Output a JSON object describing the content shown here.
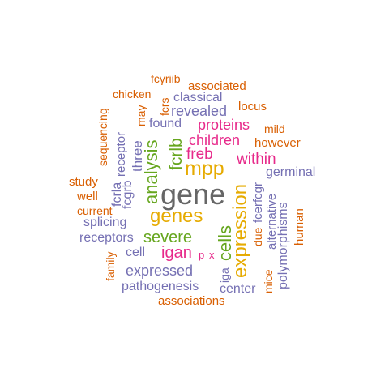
{
  "colors": {
    "orange": "#d95f02",
    "purple": "#7570b3",
    "magenta": "#e7298a",
    "green": "#66a61e",
    "gold": "#e6ab02",
    "gray": "#666666"
  },
  "words": [
    {
      "text": "gene",
      "color": "gray"
    },
    {
      "text": "genes",
      "color": "gold"
    },
    {
      "text": "mpp",
      "color": "gold"
    },
    {
      "text": "expression",
      "color": "gold"
    },
    {
      "text": "analysis",
      "color": "green"
    },
    {
      "text": "severe",
      "color": "green"
    },
    {
      "text": "fcrlb",
      "color": "green"
    },
    {
      "text": "cells",
      "color": "green"
    },
    {
      "text": "freb",
      "color": "magenta"
    },
    {
      "text": "proteins",
      "color": "magenta"
    },
    {
      "text": "children",
      "color": "magenta"
    },
    {
      "text": "within",
      "color": "magenta"
    },
    {
      "text": "igan",
      "color": "magenta"
    },
    {
      "text": "p",
      "color": "magenta"
    },
    {
      "text": "x",
      "color": "magenta"
    },
    {
      "text": "expressed",
      "color": "purple"
    },
    {
      "text": "pathogenesis",
      "color": "purple"
    },
    {
      "text": "revealed",
      "color": "purple"
    },
    {
      "text": "classical",
      "color": "purple"
    },
    {
      "text": "found",
      "color": "purple"
    },
    {
      "text": "three",
      "color": "purple"
    },
    {
      "text": "fcgrb",
      "color": "purple"
    },
    {
      "text": "fcrla",
      "color": "purple"
    },
    {
      "text": "receptor",
      "color": "purple"
    },
    {
      "text": "splicing",
      "color": "purple"
    },
    {
      "text": "receptors",
      "color": "purple"
    },
    {
      "text": "cell",
      "color": "purple"
    },
    {
      "text": "germinal",
      "color": "purple"
    },
    {
      "text": "alternative",
      "color": "purple"
    },
    {
      "text": "polymorphisms",
      "color": "purple"
    },
    {
      "text": "center",
      "color": "purple"
    },
    {
      "text": "fcerfcgr",
      "color": "purple"
    },
    {
      "text": "iga",
      "color": "purple"
    },
    {
      "text": "associated",
      "color": "orange"
    },
    {
      "text": "fcγriib",
      "color": "orange"
    },
    {
      "text": "chicken",
      "color": "orange"
    },
    {
      "text": "may",
      "color": "orange"
    },
    {
      "text": "fcrs",
      "color": "orange"
    },
    {
      "text": "locus",
      "color": "orange"
    },
    {
      "text": "mild",
      "color": "orange"
    },
    {
      "text": "however",
      "color": "orange"
    },
    {
      "text": "sequencing",
      "color": "orange"
    },
    {
      "text": "study",
      "color": "orange"
    },
    {
      "text": "well",
      "color": "orange"
    },
    {
      "text": "current",
      "color": "orange"
    },
    {
      "text": "family",
      "color": "orange"
    },
    {
      "text": "due",
      "color": "orange"
    },
    {
      "text": "mice",
      "color": "orange"
    },
    {
      "text": "human",
      "color": "orange"
    },
    {
      "text": "associations",
      "color": "orange"
    }
  ]
}
